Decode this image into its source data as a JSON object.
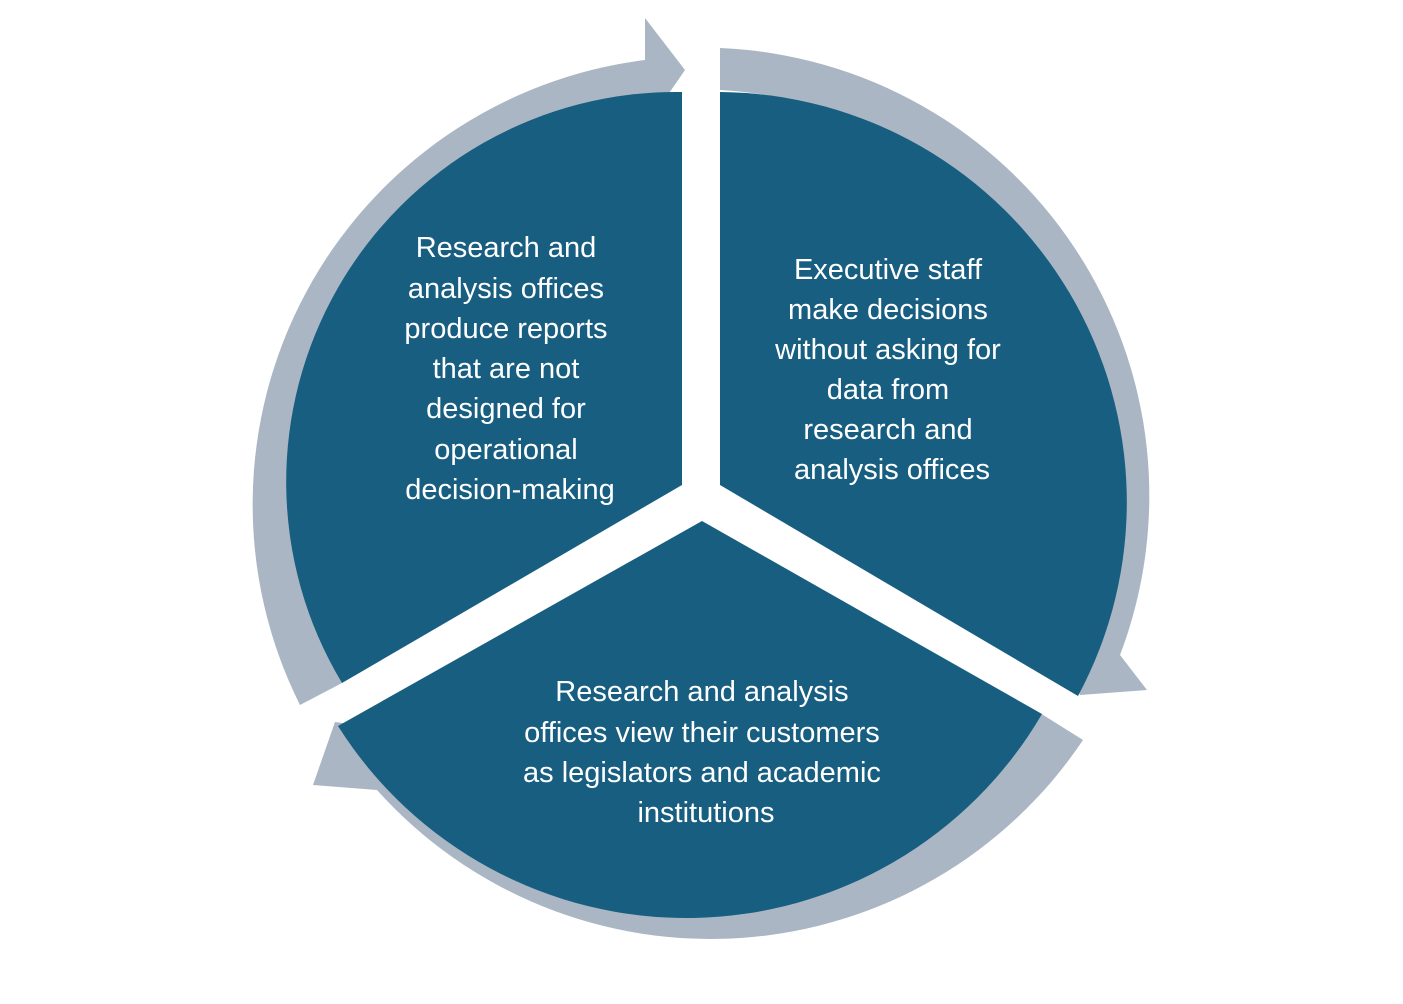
{
  "colors": {
    "segment_fill": "#175E80",
    "arrow_fill": "#AAB6C3",
    "text": "#FFFFFF",
    "background": "#FFFFFF"
  },
  "cycle": {
    "segments": [
      {
        "lines": [
          "Research and",
          "analysis offices",
          "produce reports",
          "that are not",
          "designed for",
          "operational",
          "decision-making"
        ]
      },
      {
        "lines": [
          "Executive staff",
          "make decisions",
          "without asking for",
          "data from",
          "research and",
          "analysis offices"
        ]
      },
      {
        "lines": [
          "Research and analysis",
          "offices view their customers",
          "as legislators and academic",
          "institutions"
        ]
      }
    ],
    "arrows": [
      {
        "icon": "clockwise-arrow-icon"
      },
      {
        "icon": "clockwise-arrow-icon"
      },
      {
        "icon": "clockwise-arrow-icon"
      }
    ]
  }
}
